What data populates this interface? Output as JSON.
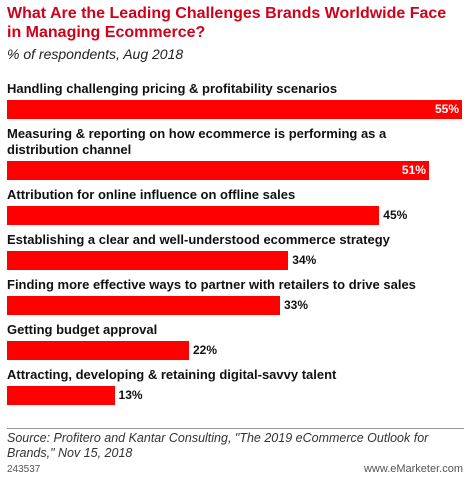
{
  "chart_data": {
    "type": "bar",
    "orientation": "horizontal",
    "title": "What Are the Leading Challenges Brands Worldwide Face in Managing Ecommerce?",
    "subtitle": "% of respondents, Aug 2018",
    "categories": [
      "Handling challenging pricing & profitability scenarios",
      "Measuring & reporting on how ecommerce is performing as a distribution channel",
      "Attribution for online influence on offline sales",
      "Establishing a clear and well-understood ecommerce strategy",
      "Finding more effective ways to partner with retailers to drive sales",
      "Getting budget approval",
      "Attracting, developing & retaining digital-savvy talent"
    ],
    "values": [
      55,
      51,
      45,
      34,
      33,
      22,
      13
    ],
    "value_labels": [
      "55%",
      "51%",
      "45%",
      "34%",
      "33%",
      "22%",
      "13%"
    ],
    "color": "#ff0000",
    "source": "Source: Profitero and Kantar Consulting, \"The 2019 eCommerce Outlook for Brands,\" Nov 15, 2018",
    "chart_id": "243537",
    "credit": "www.eMarketer.com"
  }
}
